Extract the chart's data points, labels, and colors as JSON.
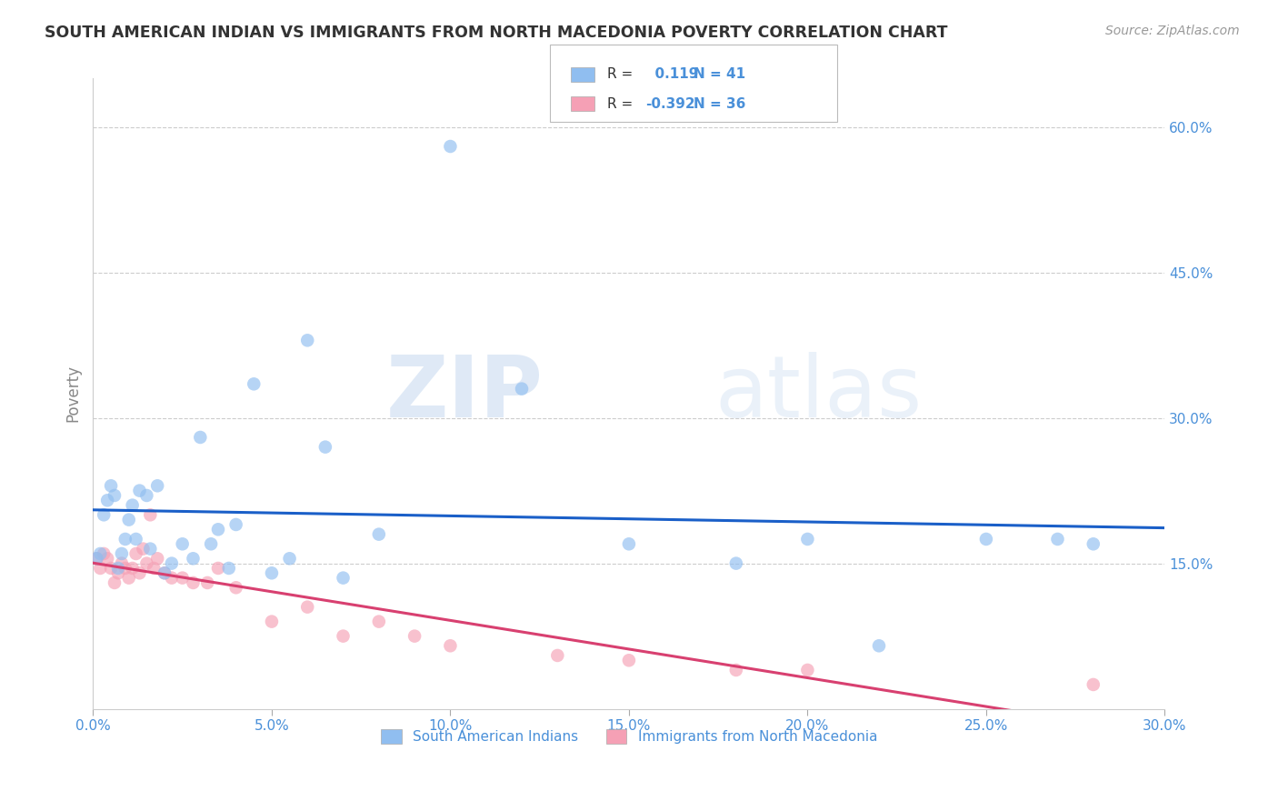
{
  "title": "SOUTH AMERICAN INDIAN VS IMMIGRANTS FROM NORTH MACEDONIA POVERTY CORRELATION CHART",
  "source": "Source: ZipAtlas.com",
  "ylabel": "Poverty",
  "xlim": [
    0.0,
    0.3
  ],
  "ylim": [
    0.0,
    0.65
  ],
  "xtick_labels": [
    "0.0%",
    "5.0%",
    "10.0%",
    "15.0%",
    "20.0%",
    "25.0%",
    "30.0%"
  ],
  "xtick_vals": [
    0.0,
    0.05,
    0.1,
    0.15,
    0.2,
    0.25,
    0.3
  ],
  "ytick_labels_right": [
    "15.0%",
    "30.0%",
    "45.0%",
    "60.0%"
  ],
  "ytick_vals_right": [
    0.15,
    0.3,
    0.45,
    0.6
  ],
  "grid_color": "#cccccc",
  "background_color": "#ffffff",
  "blue_color": "#90BEF0",
  "pink_color": "#F5A0B5",
  "blue_line_color": "#1A5FC8",
  "pink_line_color": "#D84070",
  "R_blue": 0.119,
  "N_blue": 41,
  "R_pink": -0.392,
  "N_pink": 36,
  "legend_label_blue": "South American Indians",
  "legend_label_pink": "Immigrants from North Macedonia",
  "watermark_zip": "ZIP",
  "watermark_atlas": "atlas",
  "blue_x": [
    0.001,
    0.002,
    0.003,
    0.004,
    0.005,
    0.006,
    0.007,
    0.008,
    0.009,
    0.01,
    0.011,
    0.012,
    0.013,
    0.015,
    0.016,
    0.018,
    0.02,
    0.022,
    0.025,
    0.028,
    0.03,
    0.033,
    0.035,
    0.038,
    0.04,
    0.045,
    0.05,
    0.055,
    0.06,
    0.065,
    0.07,
    0.08,
    0.1,
    0.12,
    0.15,
    0.18,
    0.2,
    0.22,
    0.25,
    0.27,
    0.28
  ],
  "blue_y": [
    0.155,
    0.16,
    0.2,
    0.215,
    0.23,
    0.22,
    0.145,
    0.16,
    0.175,
    0.195,
    0.21,
    0.175,
    0.225,
    0.22,
    0.165,
    0.23,
    0.14,
    0.15,
    0.17,
    0.155,
    0.28,
    0.17,
    0.185,
    0.145,
    0.19,
    0.335,
    0.14,
    0.155,
    0.38,
    0.27,
    0.135,
    0.18,
    0.58,
    0.33,
    0.17,
    0.15,
    0.175,
    0.065,
    0.175,
    0.175,
    0.17
  ],
  "pink_x": [
    0.001,
    0.002,
    0.003,
    0.004,
    0.005,
    0.006,
    0.007,
    0.008,
    0.009,
    0.01,
    0.011,
    0.012,
    0.013,
    0.014,
    0.015,
    0.016,
    0.017,
    0.018,
    0.02,
    0.022,
    0.025,
    0.028,
    0.032,
    0.035,
    0.04,
    0.05,
    0.06,
    0.07,
    0.08,
    0.09,
    0.1,
    0.13,
    0.15,
    0.18,
    0.2,
    0.28
  ],
  "pink_y": [
    0.155,
    0.145,
    0.16,
    0.155,
    0.145,
    0.13,
    0.14,
    0.15,
    0.145,
    0.135,
    0.145,
    0.16,
    0.14,
    0.165,
    0.15,
    0.2,
    0.145,
    0.155,
    0.14,
    0.135,
    0.135,
    0.13,
    0.13,
    0.145,
    0.125,
    0.09,
    0.105,
    0.075,
    0.09,
    0.075,
    0.065,
    0.055,
    0.05,
    0.04,
    0.04,
    0.025
  ],
  "tick_color": "#4A90D9",
  "ylabel_color": "#888888",
  "title_color": "#333333",
  "source_color": "#999999"
}
